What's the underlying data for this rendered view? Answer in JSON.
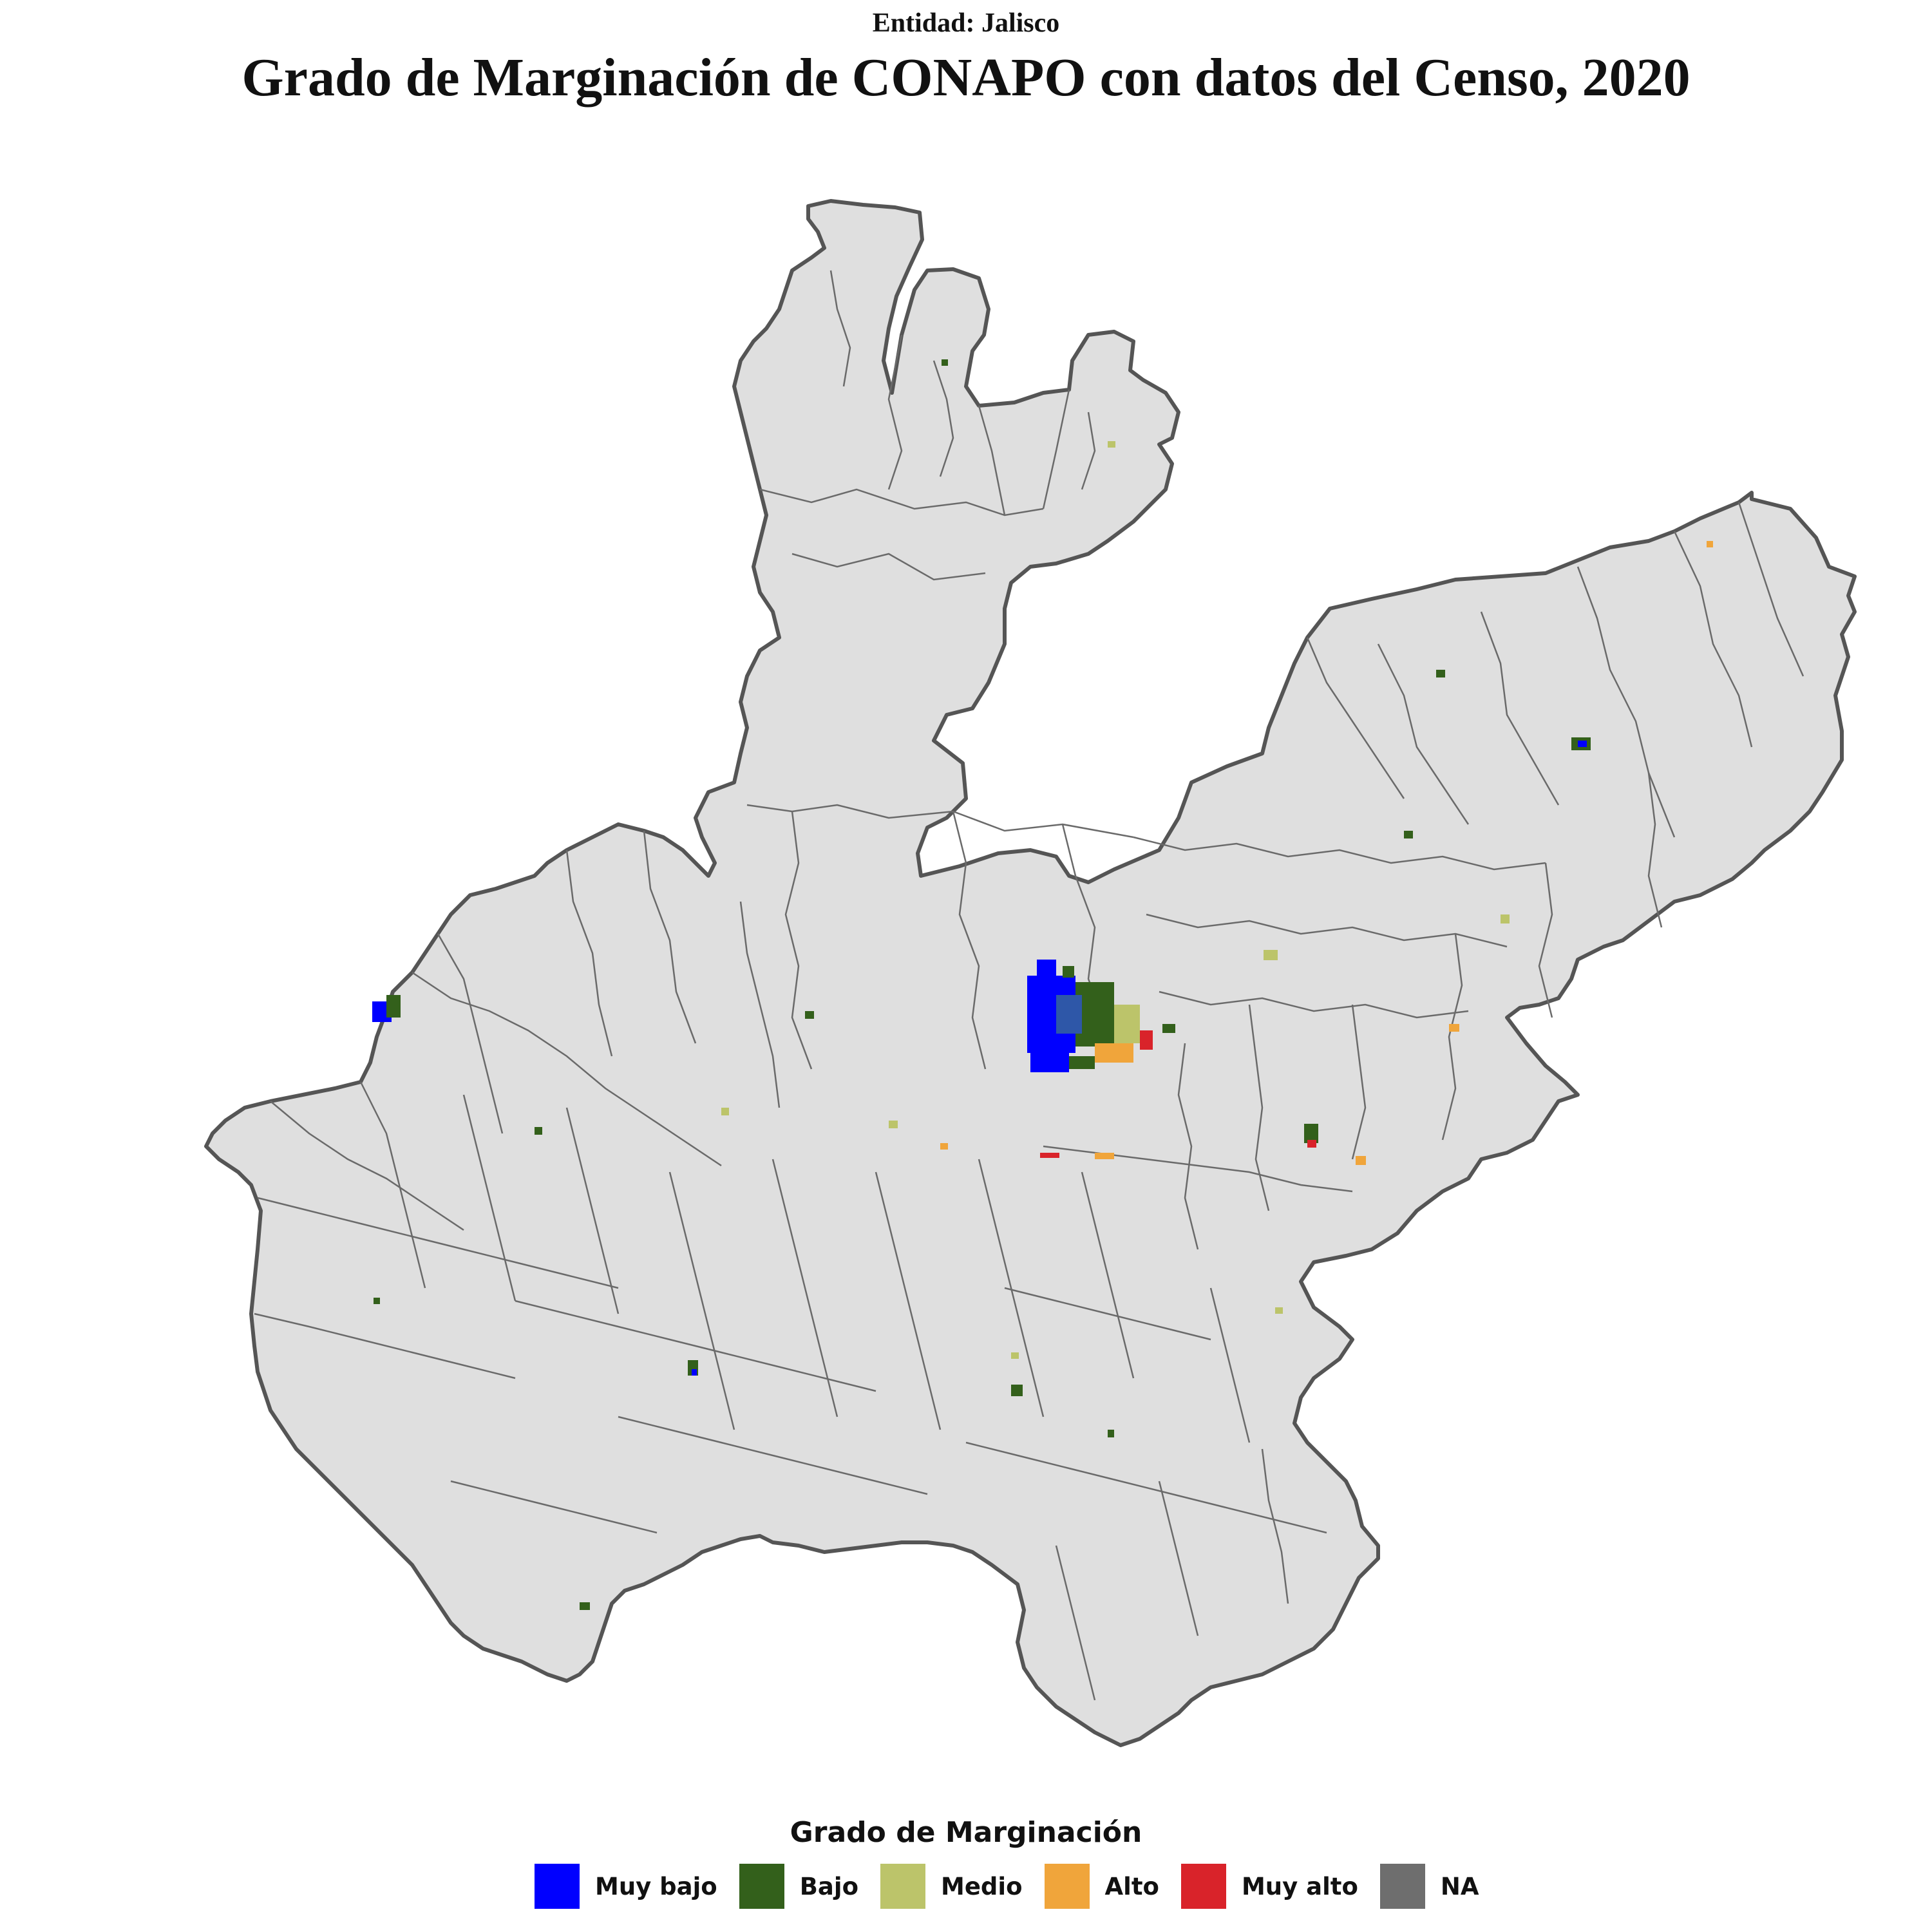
{
  "header": {
    "subtitle": "Entidad: Jalisco",
    "title": "Grado de Marginación de CONAPO con datos del Censo, 2020"
  },
  "map": {
    "region": "Jalisco",
    "land_color": "#dfdfdf",
    "border_color": "#555555",
    "urban_clusters": [
      {
        "place": "Guadalajara metro",
        "dominant_class": "Muy bajo"
      },
      {
        "place": "Puerto Vallarta",
        "dominant_class": "Muy bajo"
      }
    ]
  },
  "legend": {
    "title": "Grado de Marginación",
    "items": [
      {
        "label": "Muy bajo",
        "color": "#0000ff"
      },
      {
        "label": "Bajo",
        "color": "#33601b"
      },
      {
        "label": "Medio",
        "color": "#bcc46a"
      },
      {
        "label": "Alto",
        "color": "#f0a53b"
      },
      {
        "label": "Muy alto",
        "color": "#d9232a"
      },
      {
        "label": "NA",
        "color": "#6e6e6e"
      }
    ]
  }
}
